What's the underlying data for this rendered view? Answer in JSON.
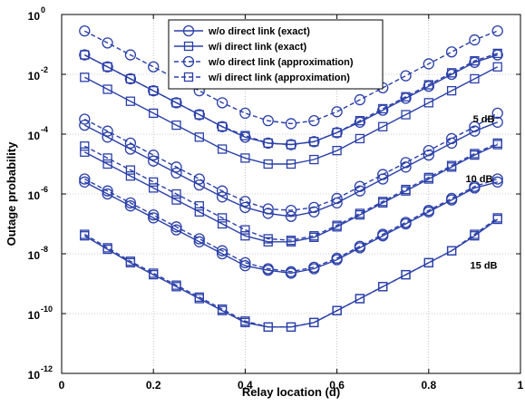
{
  "chart_data": {
    "type": "line",
    "xlabel": "Relay location (d)",
    "ylabel": "Outage probability",
    "xlim": [
      0,
      1
    ],
    "ylim_log10": [
      -12,
      0
    ],
    "yscale": "log",
    "grid": true,
    "legend_position": "top-right",
    "xticks": [
      "0",
      "0.2",
      "0.4",
      "0.6",
      "0.8",
      "1"
    ],
    "yticks": [
      {
        "base": "10",
        "exp": "0"
      },
      {
        "base": "10",
        "exp": "-2"
      },
      {
        "base": "10",
        "exp": "-4"
      },
      {
        "base": "10",
        "exp": "-6"
      },
      {
        "base": "10",
        "exp": "-8"
      },
      {
        "base": "10",
        "exp": "-10"
      },
      {
        "base": "10",
        "exp": "-12"
      }
    ],
    "legend": [
      {
        "label": "w/o direct link (exact)",
        "marker": "circle",
        "dash": "solid"
      },
      {
        "label": "w/i direct link (exact)",
        "marker": "square",
        "dash": "solid"
      },
      {
        "label": "w/o direct link (approximation)",
        "marker": "circle",
        "dash": "dashed"
      },
      {
        "label": "w/i direct link (approximation)",
        "marker": "square",
        "dash": "dashed"
      }
    ],
    "annotations": [
      {
        "text": "5 dB",
        "x": 0.92,
        "log10y": -3.6
      },
      {
        "text": "10 dB",
        "x": 0.91,
        "log10y": -5.6
      },
      {
        "text": "15 dB",
        "x": 0.92,
        "log10y": -8.5
      }
    ],
    "x": [
      0.05,
      0.1,
      0.15,
      0.2,
      0.25,
      0.3,
      0.35,
      0.4,
      0.45,
      0.5,
      0.55,
      0.6,
      0.65,
      0.7,
      0.75,
      0.8,
      0.85,
      0.9,
      0.95
    ],
    "series": [
      {
        "name": "w/o direct link (exact)",
        "snr": "5 dB",
        "marker": "circle",
        "dash": "solid",
        "log10y": [
          -1.35,
          -1.75,
          -2.15,
          -2.55,
          -2.95,
          -3.35,
          -3.75,
          -4.1,
          -4.3,
          -4.35,
          -4.25,
          -3.95,
          -3.6,
          -3.2,
          -2.8,
          -2.4,
          -2.0,
          -1.6,
          -1.35
        ]
      },
      {
        "name": "w/i direct link (exact)",
        "snr": "5 dB",
        "marker": "square",
        "dash": "solid",
        "log10y": [
          -2.1,
          -2.5,
          -2.9,
          -3.3,
          -3.7,
          -4.1,
          -4.5,
          -4.8,
          -5.0,
          -5.0,
          -4.85,
          -4.55,
          -4.15,
          -3.75,
          -3.35,
          -2.95,
          -2.55,
          -2.15,
          -1.75
        ]
      },
      {
        "name": "w/o direct link (approximation)",
        "snr": "5 dB",
        "marker": "circle",
        "dash": "dashed",
        "log10y": [
          -0.55,
          -0.95,
          -1.35,
          -1.75,
          -2.15,
          -2.55,
          -2.95,
          -3.3,
          -3.55,
          -3.65,
          -3.55,
          -3.25,
          -2.85,
          -2.45,
          -2.05,
          -1.65,
          -1.25,
          -0.85,
          -0.55
        ]
      },
      {
        "name": "w/i direct link (approximation)",
        "snr": "5 dB",
        "marker": "square",
        "dash": "dashed",
        "log10y": [
          -1.35,
          -1.75,
          -2.15,
          -2.55,
          -2.95,
          -3.35,
          -3.75,
          -4.05,
          -4.3,
          -4.35,
          -4.25,
          -3.95,
          -3.55,
          -3.15,
          -2.75,
          -2.35,
          -1.95,
          -1.55,
          -1.3
        ]
      },
      {
        "name": "w/o direct link (exact)",
        "snr": "10 dB",
        "marker": "circle",
        "dash": "solid",
        "log10y": [
          -3.7,
          -4.1,
          -4.5,
          -4.9,
          -5.3,
          -5.7,
          -6.1,
          -6.45,
          -6.65,
          -6.75,
          -6.6,
          -6.3,
          -5.9,
          -5.5,
          -5.1,
          -4.7,
          -4.3,
          -3.9,
          -3.6
        ]
      },
      {
        "name": "w/i direct link (exact)",
        "snr": "10 dB",
        "marker": "square",
        "dash": "solid",
        "log10y": [
          -4.6,
          -5.0,
          -5.4,
          -5.8,
          -6.2,
          -6.6,
          -7.0,
          -7.4,
          -7.6,
          -7.6,
          -7.45,
          -7.1,
          -6.7,
          -6.3,
          -5.9,
          -5.5,
          -5.1,
          -4.7,
          -4.35
        ]
      },
      {
        "name": "w/o direct link (approximation)",
        "snr": "10 dB",
        "marker": "circle",
        "dash": "dashed",
        "log10y": [
          -3.5,
          -3.9,
          -4.3,
          -4.7,
          -5.1,
          -5.5,
          -5.9,
          -6.25,
          -6.5,
          -6.55,
          -6.45,
          -6.15,
          -5.75,
          -5.35,
          -4.95,
          -4.55,
          -4.15,
          -3.75,
          -3.3
        ]
      },
      {
        "name": "w/i direct link (approximation)",
        "snr": "10 dB",
        "marker": "square",
        "dash": "dashed",
        "log10y": [
          -4.4,
          -4.8,
          -5.2,
          -5.6,
          -6.0,
          -6.4,
          -6.8,
          -7.2,
          -7.5,
          -7.55,
          -7.4,
          -7.05,
          -6.65,
          -6.25,
          -5.85,
          -5.45,
          -5.05,
          -4.65,
          -4.3
        ]
      },
      {
        "name": "w/o direct link (exact)",
        "snr": "15 dB",
        "marker": "circle",
        "dash": "solid",
        "log10y": [
          -5.6,
          -6.0,
          -6.4,
          -6.8,
          -7.2,
          -7.6,
          -8.0,
          -8.4,
          -8.55,
          -8.65,
          -8.5,
          -8.2,
          -7.8,
          -7.4,
          -7.0,
          -6.6,
          -6.2,
          -5.8,
          -5.6
        ]
      },
      {
        "name": "w/i direct link (exact)",
        "snr": "15 dB",
        "marker": "square",
        "dash": "solid",
        "log10y": [
          -7.4,
          -7.85,
          -8.3,
          -8.7,
          -9.1,
          -9.5,
          -9.9,
          -10.3,
          -10.45,
          -10.45,
          -10.3,
          -9.9,
          -9.5,
          -9.1,
          -8.7,
          -8.3,
          -7.9,
          -7.4,
          -6.85
        ]
      },
      {
        "name": "w/o direct link (approximation)",
        "snr": "15 dB",
        "marker": "circle",
        "dash": "dashed",
        "log10y": [
          -5.5,
          -5.9,
          -6.3,
          -6.7,
          -7.1,
          -7.5,
          -7.9,
          -8.3,
          -8.5,
          -8.6,
          -8.45,
          -8.15,
          -7.75,
          -7.35,
          -6.95,
          -6.55,
          -6.15,
          -5.75,
          -5.5
        ]
      },
      {
        "name": "w/i direct link (approximation)",
        "snr": "15 dB",
        "marker": "square",
        "dash": "dashed",
        "log10y": [
          -7.35,
          -7.8,
          -8.25,
          -8.65,
          -9.05,
          -9.45,
          -9.85,
          -10.25,
          -10.45,
          -10.45,
          -10.3,
          -9.9,
          -9.5,
          -9.1,
          -8.7,
          -8.3,
          -7.9,
          -7.35,
          -6.8
        ]
      }
    ],
    "series_color": "#2a3fa8"
  }
}
